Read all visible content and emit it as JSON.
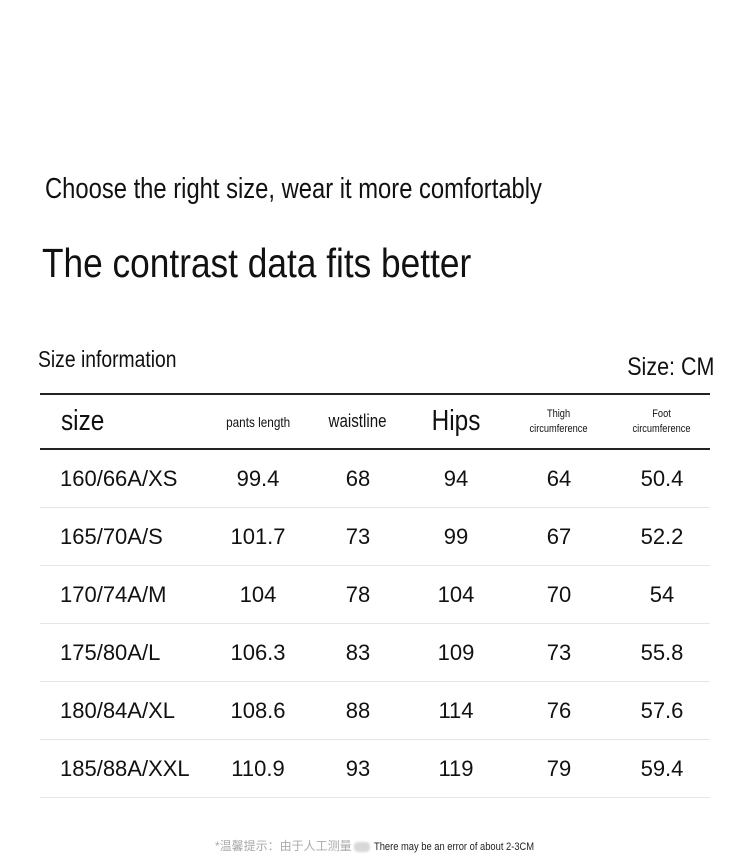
{
  "tagline": "Choose the right size, wear it more comfortably",
  "headline": "The contrast data fits better",
  "section_title": "Size information",
  "unit_label": "Size: CM",
  "table": {
    "headers": [
      "size",
      "pants length",
      "waistline",
      "Hips",
      "Thigh circumference",
      "Foot circumference"
    ],
    "header_lines": {
      "thigh": [
        "Thigh",
        "circumference"
      ],
      "foot": [
        "Foot",
        "circumference"
      ]
    },
    "rows": [
      [
        "160/66A/XS",
        "99.4",
        "68",
        "94",
        "64",
        "50.4"
      ],
      [
        "165/70A/S",
        "101.7",
        "73",
        "99",
        "67",
        "52.2"
      ],
      [
        "170/74A/M",
        "104",
        "78",
        "104",
        "70",
        "54"
      ],
      [
        "175/80A/L",
        "106.3",
        "83",
        "109",
        "73",
        "55.8"
      ],
      [
        "180/84A/XL",
        "108.6",
        "88",
        "114",
        "76",
        "57.6"
      ],
      [
        "185/88A/XXL",
        "110.9",
        "93",
        "119",
        "79",
        "59.4"
      ]
    ]
  },
  "footnote": {
    "cn": "*温馨提示：由于人工测量",
    "en": "There may be an error of about 2-3CM"
  }
}
